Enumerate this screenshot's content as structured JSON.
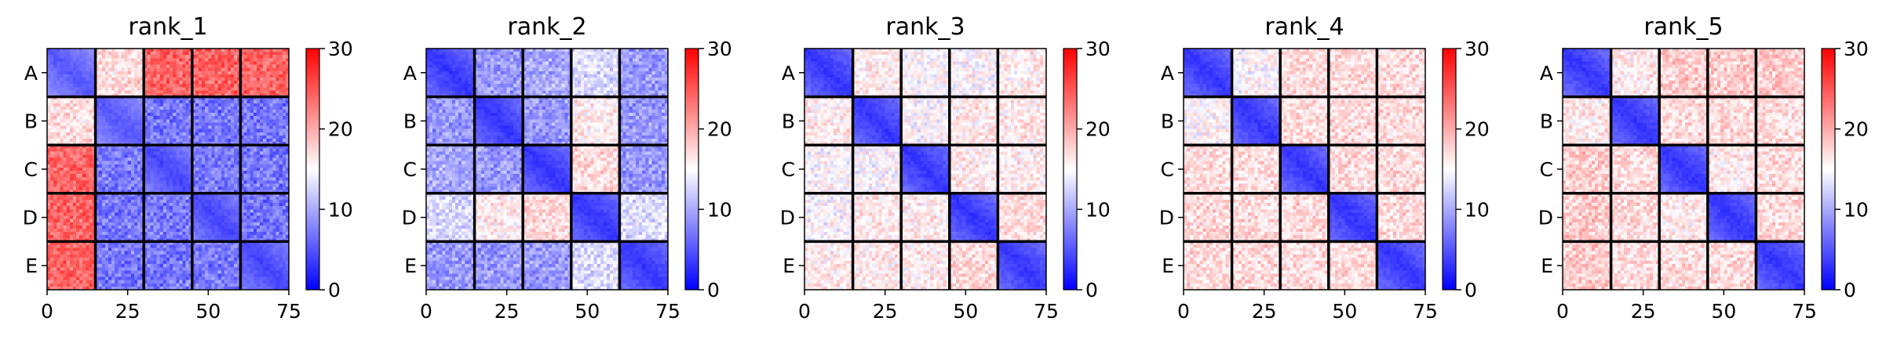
{
  "chart_data": [
    {
      "type": "heatmap",
      "title": "rank_1",
      "row_labels": [
        "A",
        "B",
        "C",
        "D",
        "E"
      ],
      "x_ticks": [
        "0",
        "25",
        "50",
        "75"
      ],
      "xlim": [
        0,
        75
      ],
      "colorbar": {
        "ticks": [
          "0",
          "10",
          "20",
          "30"
        ],
        "range": [
          0,
          30
        ],
        "colors": [
          "#0000ff",
          "#ffffff",
          "#ff0000"
        ]
      },
      "block_means": [
        [
          5,
          17,
          24,
          24,
          24
        ],
        [
          17,
          5,
          7,
          7,
          7
        ],
        [
          24,
          7,
          4,
          7,
          7
        ],
        [
          24,
          7,
          7,
          4,
          7
        ],
        [
          24,
          7,
          7,
          7,
          4
        ]
      ]
    },
    {
      "type": "heatmap",
      "title": "rank_2",
      "row_labels": [
        "A",
        "B",
        "C",
        "D",
        "E"
      ],
      "x_ticks": [
        "0",
        "25",
        "50",
        "75"
      ],
      "xlim": [
        0,
        75
      ],
      "colorbar": {
        "ticks": [
          "0",
          "10",
          "20",
          "30"
        ],
        "range": [
          0,
          30
        ],
        "colors": [
          "#0000ff",
          "#ffffff",
          "#ff0000"
        ]
      },
      "block_means": [
        [
          3,
          9,
          10,
          13,
          9
        ],
        [
          9,
          3,
          9,
          16,
          9
        ],
        [
          10,
          9,
          3,
          17,
          9
        ],
        [
          13,
          16,
          17,
          3,
          13
        ],
        [
          9,
          9,
          9,
          13,
          3
        ]
      ]
    },
    {
      "type": "heatmap",
      "title": "rank_3",
      "row_labels": [
        "A",
        "B",
        "C",
        "D",
        "E"
      ],
      "x_ticks": [
        "0",
        "25",
        "50",
        "75"
      ],
      "xlim": [
        0,
        75
      ],
      "colorbar": {
        "ticks": [
          "0",
          "10",
          "20",
          "30"
        ],
        "range": [
          0,
          30
        ],
        "colors": [
          "#0000ff",
          "#ffffff",
          "#ff0000"
        ]
      },
      "block_means": [
        [
          3,
          16,
          15,
          15,
          16
        ],
        [
          16,
          3,
          15,
          16,
          16
        ],
        [
          15,
          15,
          3,
          16,
          16
        ],
        [
          15,
          16,
          16,
          3,
          17
        ],
        [
          16,
          16,
          16,
          17,
          3
        ]
      ]
    },
    {
      "type": "heatmap",
      "title": "rank_4",
      "row_labels": [
        "A",
        "B",
        "C",
        "D",
        "E"
      ],
      "x_ticks": [
        "0",
        "25",
        "50",
        "75"
      ],
      "xlim": [
        0,
        75
      ],
      "colorbar": {
        "ticks": [
          "0",
          "10",
          "20",
          "30"
        ],
        "range": [
          0,
          30
        ],
        "colors": [
          "#0000ff",
          "#ffffff",
          "#ff0000"
        ]
      },
      "block_means": [
        [
          3,
          15,
          17,
          17,
          17
        ],
        [
          15,
          3,
          17,
          17,
          17
        ],
        [
          17,
          17,
          3,
          17,
          17
        ],
        [
          17,
          17,
          17,
          3,
          17
        ],
        [
          17,
          17,
          17,
          17,
          3
        ]
      ]
    },
    {
      "type": "heatmap",
      "title": "rank_5",
      "row_labels": [
        "A",
        "B",
        "C",
        "D",
        "E"
      ],
      "x_ticks": [
        "0",
        "25",
        "50",
        "75"
      ],
      "xlim": [
        0,
        75
      ],
      "colorbar": {
        "ticks": [
          "0",
          "10",
          "20",
          "30"
        ],
        "range": [
          0,
          30
        ],
        "colors": [
          "#0000ff",
          "#ffffff",
          "#ff0000"
        ]
      },
      "block_means": [
        [
          3,
          16,
          18,
          18,
          18
        ],
        [
          16,
          3,
          17,
          17,
          17
        ],
        [
          18,
          17,
          3,
          16,
          17
        ],
        [
          18,
          17,
          16,
          3,
          17
        ],
        [
          18,
          17,
          17,
          17,
          3
        ]
      ]
    }
  ]
}
